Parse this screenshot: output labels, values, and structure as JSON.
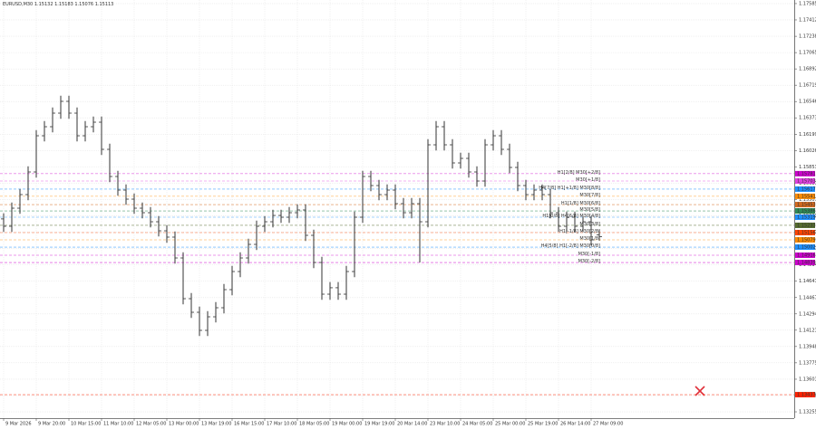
{
  "chart_data": {
    "type": "candlestick",
    "symbol": "EURUSD,M30",
    "categories": [
      "9 Mar 2026",
      null,
      null,
      null,
      "9 Mar 20:00",
      null,
      null,
      null,
      "10 Mar 15:00",
      null,
      null,
      null,
      "11 Mar 10:00",
      null,
      null,
      null,
      "12 Mar 05:00",
      null,
      null,
      null,
      "13 Mar 00:00",
      null,
      null,
      null,
      "13 Mar 19:00",
      null,
      null,
      null,
      "16 Mar 15:00",
      null,
      null,
      null,
      "17 Mar 10:00",
      null,
      null,
      null,
      "18 Mar 05:00",
      null,
      null,
      null,
      "19 Mar 00:00",
      null,
      null,
      null,
      "19 Mar 19:00",
      null,
      null,
      null,
      "20 Mar 14:00",
      null,
      null,
      null,
      "23 Mar 10:00",
      null,
      null,
      null,
      "24 Mar 05:00",
      null,
      null,
      null,
      "25 Mar 00:00",
      null,
      null,
      null,
      "25 Mar 19:00",
      null,
      null,
      null,
      "26 Mar 14:00",
      null,
      null,
      null,
      "27 Mar 09:00",
      null
    ],
    "open": [
      1.15301,
      1.15223,
      1.15415,
      1.15559,
      1.15799,
      1.16183,
      1.16279,
      1.16423,
      1.16548,
      1.16423,
      1.16183,
      1.16279,
      1.16327,
      1.16039,
      1.15751,
      1.15607,
      1.15511,
      1.15415,
      1.15367,
      1.15271,
      1.15175,
      1.15108,
      1.14887,
      1.14455,
      1.14311,
      1.14119,
      1.14263,
      1.14359,
      1.14551,
      1.14743,
      1.14887,
      1.15031,
      1.15223,
      1.15271,
      1.15338,
      1.15319,
      1.15367,
      1.15396,
      1.15127,
      1.14839,
      1.14503,
      1.14571,
      1.14503,
      1.14743,
      1.15319,
      1.15751,
      1.15655,
      1.15559,
      1.15607,
      1.15463,
      1.15367,
      1.15463,
      1.15271,
      1.16087,
      1.16279,
      1.16087,
      1.15895,
      1.15943,
      1.15799,
      1.15703,
      1.16087,
      1.16183,
      1.16039,
      1.15847,
      1.15655,
      1.15559,
      1.15607,
      1.15559,
      1.15367,
      1.15223,
      1.15319,
      1.15223,
      1.15271,
      1.15132
    ],
    "high": [
      1.15361,
      1.15475,
      1.15619,
      1.15859,
      1.16243,
      1.16339,
      1.16483,
      1.16608,
      1.16608,
      1.16483,
      1.16339,
      1.16387,
      1.16387,
      1.16099,
      1.15811,
      1.15667,
      1.15571,
      1.15475,
      1.15427,
      1.15331,
      1.15235,
      1.15168,
      1.14947,
      1.14515,
      1.14371,
      1.14323,
      1.14419,
      1.14611,
      1.14803,
      1.14947,
      1.15091,
      1.15283,
      1.15331,
      1.15398,
      1.15398,
      1.15427,
      1.15456,
      1.15456,
      1.15187,
      1.14899,
      1.14631,
      1.14631,
      1.14803,
      1.15379,
      1.15811,
      1.15811,
      1.15715,
      1.15667,
      1.15667,
      1.15523,
      1.15523,
      1.15523,
      1.16147,
      1.16339,
      1.16339,
      1.16147,
      1.16003,
      1.16003,
      1.15859,
      1.16147,
      1.16243,
      1.16243,
      1.16099,
      1.15907,
      1.15715,
      1.15667,
      1.15667,
      1.15619,
      1.15427,
      1.15379,
      1.15379,
      1.15331,
      1.15331,
      1.15183
    ],
    "low": [
      1.15163,
      1.15163,
      1.15355,
      1.15499,
      1.15739,
      1.16123,
      1.16219,
      1.16363,
      1.16363,
      1.16123,
      1.16123,
      1.16219,
      1.15979,
      1.15691,
      1.15547,
      1.15451,
      1.15355,
      1.15307,
      1.15211,
      1.15115,
      1.15048,
      1.14827,
      1.14395,
      1.14251,
      1.14059,
      1.14059,
      1.14203,
      1.14299,
      1.14491,
      1.14683,
      1.14827,
      1.14971,
      1.15163,
      1.15211,
      1.15259,
      1.15259,
      1.15307,
      1.15067,
      1.14779,
      1.14443,
      1.14443,
      1.14443,
      1.14443,
      1.14683,
      1.15259,
      1.15595,
      1.15499,
      1.15499,
      1.15403,
      1.15307,
      1.15307,
      1.14839,
      1.15211,
      1.16027,
      1.16027,
      1.15835,
      1.15835,
      1.15739,
      1.15643,
      1.15643,
      1.16027,
      1.15979,
      1.15787,
      1.15595,
      1.15499,
      1.15499,
      1.15499,
      1.15307,
      1.15163,
      1.15163,
      1.15163,
      1.15163,
      1.15019,
      1.15076
    ],
    "close": [
      1.15223,
      1.15415,
      1.15559,
      1.15799,
      1.16183,
      1.16279,
      1.16423,
      1.16548,
      1.16423,
      1.16183,
      1.16279,
      1.16327,
      1.16039,
      1.15751,
      1.15607,
      1.15511,
      1.15415,
      1.15367,
      1.15271,
      1.15175,
      1.15108,
      1.14887,
      1.14455,
      1.14311,
      1.14119,
      1.14263,
      1.14359,
      1.14551,
      1.14743,
      1.14887,
      1.15031,
      1.15223,
      1.15271,
      1.15338,
      1.15319,
      1.15367,
      1.15396,
      1.15127,
      1.14839,
      1.14503,
      1.14571,
      1.14503,
      1.14743,
      1.15319,
      1.15751,
      1.15655,
      1.15559,
      1.15607,
      1.15463,
      1.15367,
      1.15463,
      1.15271,
      1.16087,
      1.16279,
      1.16087,
      1.15895,
      1.15943,
      1.15799,
      1.15703,
      1.16087,
      1.16183,
      1.16039,
      1.15847,
      1.15655,
      1.15559,
      1.15607,
      1.15559,
      1.15367,
      1.15223,
      1.15319,
      1.15223,
      1.15271,
      1.15079,
      1.15113
    ],
    "color": "#333333",
    "ylim": [
      1.13188,
      1.17623
    ],
    "yticks": [
      1.17585,
      1.17412,
      1.17238,
      1.17065,
      1.16892,
      1.16719,
      1.16546,
      1.16373,
      1.16199,
      1.16026,
      1.15853,
      1.15681,
      1.15507,
      1.15333,
      1.15161,
      1.14987,
      1.14814,
      1.14641,
      1.14467,
      1.14294,
      1.14121,
      1.13948,
      1.13775,
      1.13601,
      1.13428,
      1.13255
    ],
    "grid": true,
    "levels": [
      {
        "label": "H1[2/8] M30[+2/8]",
        "value": 1.15781,
        "color": "#cc00cc"
      },
      {
        "label": "M30[+1/8]",
        "value": 1.15703,
        "color": "#e040e0"
      },
      {
        "label": "H4[7/8] H1[+1/8] M30[8/8]",
        "value": 1.15617,
        "color": "#1e90ff"
      },
      {
        "label": "M30[7/8]",
        "value": 1.15541,
        "color": "#ff8c00"
      },
      {
        "label": "H1[1/8] M30[6/8]",
        "value": 1.15453,
        "color": "#d2691e"
      },
      {
        "label": "M30[5/8]",
        "value": 1.15386,
        "color": "#2e8b57"
      },
      {
        "label": "H1[0/8] H4[6/8] M30[4/8]",
        "value": 1.15319,
        "color": "#1e90ff"
      },
      {
        "label": "M30[3/8]",
        "value": 1.15233,
        "color": "#556b2f"
      },
      {
        "label": "H1[-1/8] M30[2/8]",
        "value": 1.15156,
        "color": "#ff4500"
      },
      {
        "label": "M30[1/8]",
        "value": 1.15079,
        "color": "#ff8c00"
      },
      {
        "label": "H4[5/8] H1[-2/8] M30[0/8]",
        "value": 1.15002,
        "color": "#1e90ff"
      },
      {
        "label": "M30[-1/8]",
        "value": 1.14916,
        "color": "#cc00cc"
      },
      {
        "label": "M30[-2/8]",
        "value": 1.14839,
        "color": "#cc00cc"
      }
    ],
    "alert_level": {
      "value": 1.13437,
      "color": "#ff2200"
    }
  }
}
